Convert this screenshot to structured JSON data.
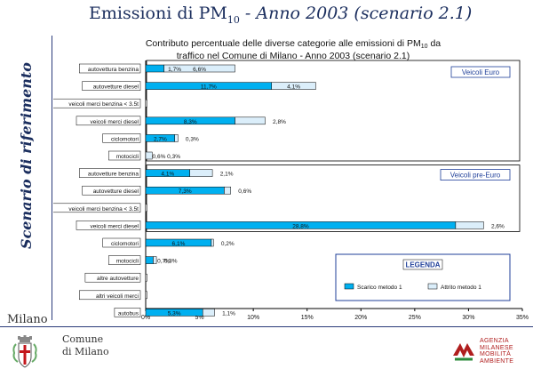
{
  "slide": {
    "title_main": "Emissioni di PM",
    "title_sub": "10",
    "title_rest": " - Anno 2003 (scenario 2.1)",
    "side_title": "Scenario di riferimento",
    "milano_word": "Milano",
    "comune_line1": "Comune",
    "comune_line2": "di Milano",
    "agency_lines": [
      "AGENZIA",
      "MILANESE",
      "MOBILITÀ",
      "AMBIENTE"
    ]
  },
  "chart_data": {
    "type": "bar",
    "stacked": true,
    "orientation": "horizontal",
    "title_line1": "Contributo percentuale delle diverse categorie alle emissioni di PM",
    "title_sub": "10",
    "title_line1_end": " da",
    "title_line2": "traffico nel Comune di Milano - Anno 2003 (scenario 2.1)",
    "categories": [
      "autovettura benzina",
      "autovetture diesel",
      "veicoli merci benzina < 3.5t",
      "veicoli merci diesel",
      "ciclomotori",
      "motocicli",
      "autovetture benzina",
      "autovetture diesel",
      "veicoli merci benzina < 3.5t",
      "veicoli merci diesel",
      "ciclomotori",
      "motocicli",
      "altre autovetture",
      "altri veicoli merci",
      "autobus"
    ],
    "series": [
      {
        "name": "Scarico metodo 1",
        "color": "#00b0f0",
        "values": [
          1.7,
          11.7,
          0.0,
          8.3,
          2.7,
          0.0,
          4.1,
          7.3,
          0.0,
          28.8,
          6.1,
          0.7,
          0.0,
          0.0,
          5.3
        ]
      },
      {
        "name": "Attrito metodo 1",
        "color": "#dbeefa",
        "values": [
          6.6,
          4.1,
          0.0,
          2.8,
          0.3,
          0.6,
          2.1,
          0.6,
          0.0,
          2.6,
          0.2,
          0.3,
          0.0,
          0.0,
          1.1
        ]
      }
    ],
    "bar_labels": [
      [
        "1,7%",
        "6,6%"
      ],
      [
        "11,7%",
        "4,1%"
      ],
      [
        "",
        ""
      ],
      [
        "8,3%",
        "2,8%"
      ],
      [
        "2,7%",
        "0,3%"
      ],
      [
        "",
        "0,6%  0,3%"
      ],
      [
        "4,1%",
        "2,1%"
      ],
      [
        "7,3%",
        "0,6%"
      ],
      [
        "",
        ""
      ],
      [
        "28,8%",
        "2,6%"
      ],
      [
        "6,1%",
        "0,2%"
      ],
      [
        "0,7%",
        "0,3%"
      ],
      [
        "",
        ""
      ],
      [
        "",
        ""
      ],
      [
        "5,3%",
        "1,1%"
      ]
    ],
    "groups": [
      "Veicoli Euro",
      "Veicoli pre-Euro"
    ],
    "legend_title": "LEGENDA",
    "xlim": [
      0,
      35
    ],
    "xticks": [
      "0%",
      "5%",
      "10%",
      "15%",
      "20%",
      "25%",
      "30%",
      "35%"
    ]
  }
}
